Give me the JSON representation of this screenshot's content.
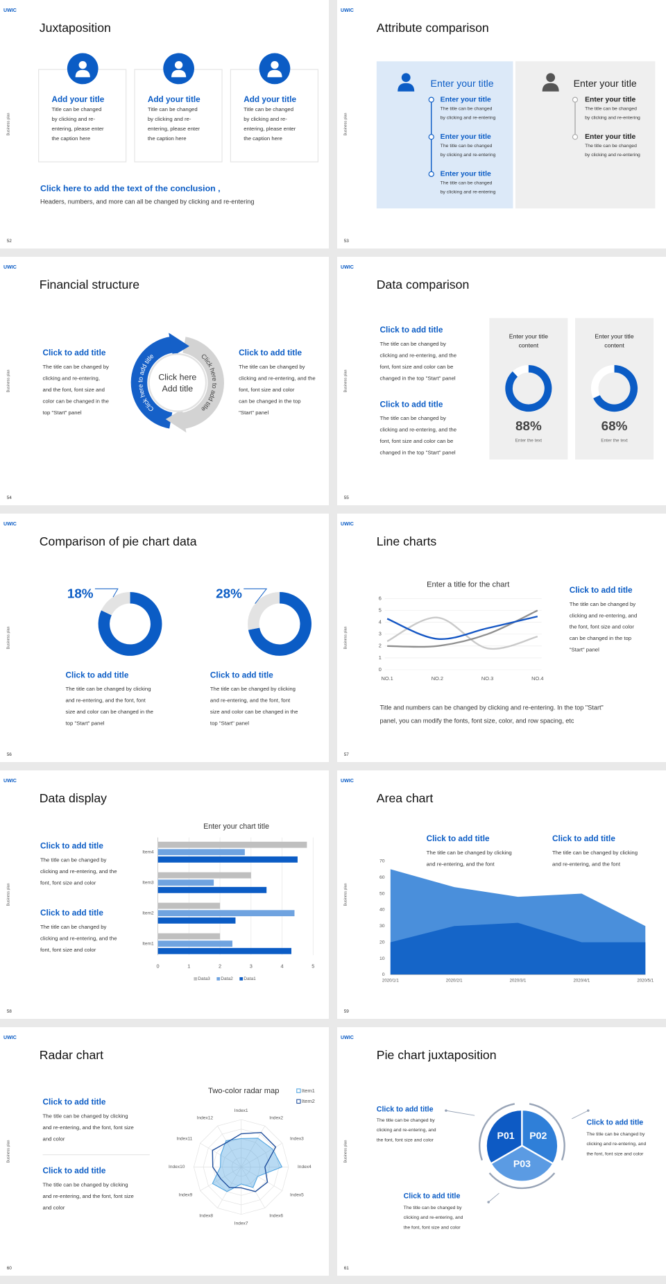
{
  "slides": [
    {
      "number": "52",
      "logo": "UWIC",
      "side_label": "Business plan",
      "title": "Juxtaposition",
      "cards": [
        {
          "title": "Add your title",
          "body": [
            "Title can be changed",
            "by clicking and re-",
            "entering, please enter",
            "the caption here"
          ]
        },
        {
          "title": "Add your title",
          "body": [
            "Title can be changed",
            "by clicking and re-",
            "entering, please enter",
            "the caption here"
          ]
        },
        {
          "title": "Add your title",
          "body": [
            "Title can be changed",
            "by clicking and re-",
            "entering, please enter",
            "the caption here"
          ]
        }
      ],
      "conclusion": {
        "title": "Click here to add the text of the conclusion ,",
        "text": "Headers, numbers, and more can all be changed by clicking and re-entering"
      }
    },
    {
      "number": "53",
      "logo": "UWIC",
      "side_label": "Business plan",
      "title": "Attribute comparison",
      "panels": [
        {
          "title": "Enter your title",
          "items": [
            {
              "title": "Enter your title",
              "body": [
                "The title can be changed",
                "by clicking and re-entering"
              ]
            },
            {
              "title": "Enter your title",
              "body": [
                "The title can be changed",
                "by clicking and re-entering"
              ]
            },
            {
              "title": "Enter your title",
              "body": [
                "The title can be changed",
                "by clicking and re-entering"
              ]
            }
          ]
        },
        {
          "title": "Enter your title",
          "items": [
            {
              "title": "Enter your title",
              "body": [
                "The title can be changed",
                "by clicking and re-entering"
              ]
            },
            {
              "title": "Enter your title",
              "body": [
                "The title can be changed",
                "by clicking and re-entering"
              ]
            }
          ]
        }
      ]
    },
    {
      "number": "54",
      "logo": "UWIC",
      "side_label": "Business plan",
      "title": "Financial structure",
      "blocks": [
        {
          "title": "Click to add title",
          "body": [
            "The title can be changed by",
            "clicking and re-entering,",
            "and the font, font size and",
            "color can be changed in the",
            "top \"Start\" panel"
          ]
        },
        {
          "title": "Click to add title",
          "body": [
            "The title can be changed by",
            "clicking and re-entering, and the",
            "font, font size and color",
            "can be changed in the top",
            "\"Start\" panel"
          ]
        }
      ],
      "diagram": {
        "center": [
          "Click here",
          "Add title"
        ],
        "arc_left": "Click here to add title",
        "arc_right": "Click here to add title"
      }
    },
    {
      "number": "55",
      "logo": "UWIC",
      "side_label": "Business plan",
      "title": "Data comparison",
      "blocks": [
        {
          "title": "Click to add title",
          "body": [
            "The title can be changed by",
            "clicking and re-entering, and the",
            "font, font size and color can be",
            "changed in the top \"Start\" panel"
          ]
        },
        {
          "title": "Click to add title",
          "body": [
            "The title can be changed by",
            "clicking and re-entering, and the",
            "font, font size and color can be",
            "changed in the top \"Start\" panel"
          ]
        }
      ],
      "cards": [
        {
          "title": [
            "Enter your title",
            "content"
          ],
          "value": 88,
          "value_label": "88%",
          "caption": "Enter the text"
        },
        {
          "title": [
            "Enter your title",
            "content"
          ],
          "value": 68,
          "value_label": "68%",
          "caption": "Enter the text"
        }
      ]
    },
    {
      "number": "56",
      "logo": "UWIC",
      "side_label": "Business plan",
      "title": "Comparison of pie chart data",
      "items": [
        {
          "value": 18,
          "value_label": "18%",
          "title": "Click to add title",
          "body": [
            "The title can be changed by clicking",
            "and re-entering, and the font, font",
            "size and color can be changed in the",
            "top \"Start\" panel"
          ]
        },
        {
          "value": 28,
          "value_label": "28%",
          "title": "Click to add title",
          "body": [
            "The title can be changed by clicking",
            "and re-entering, and the font, font",
            "size and color can be changed in the",
            "top \"Start\" panel"
          ]
        }
      ]
    },
    {
      "number": "57",
      "logo": "UWIC",
      "side_label": "Business plan",
      "title": "Line charts",
      "chart": {
        "type": "line",
        "title": "Enter a title for the chart",
        "categories": [
          "NO.1",
          "NO.2",
          "NO.3",
          "NO.4"
        ],
        "series": [
          {
            "color": "#c9c9c9",
            "values": [
              2.4,
              4.4,
              1.8,
              2.8
            ]
          },
          {
            "color": "#8f8f8f",
            "values": [
              2,
              2,
              3,
              5
            ]
          },
          {
            "color": "#1456c4",
            "values": [
              4.3,
              2.6,
              3.5,
              4.5
            ]
          }
        ],
        "ylim": [
          0,
          6
        ],
        "yticks": [
          0,
          1,
          2,
          3,
          4,
          5,
          6
        ],
        "grid": true,
        "smooth": true
      },
      "block": {
        "title": "Click to add title",
        "body": [
          "The title can be changed by",
          "clicking and re-entering, and",
          "the font, font size and color",
          "can be changed in the top",
          "\"Start\" panel"
        ]
      },
      "note": [
        "Title and numbers can be changed by clicking and re-entering. In the top \"Start\"",
        "panel, you can modify the fonts, font size, color, and row spacing, etc"
      ]
    },
    {
      "number": "58",
      "logo": "UWIC",
      "side_label": "Business plan",
      "title": "Data display",
      "chart": {
        "type": "bar",
        "title": "Enter your chart title",
        "categories": [
          "Item1",
          "Item2",
          "Item3",
          "Item4"
        ],
        "series": [
          {
            "name": "Data1",
            "color": "#0b5cc5",
            "values": [
              4.3,
              2.5,
              3.5,
              4.5
            ]
          },
          {
            "name": "Data2",
            "color": "#6fa3e0",
            "values": [
              2.4,
              4.4,
              1.8,
              2.8
            ]
          },
          {
            "name": "Data3",
            "color": "#bfbfbf",
            "values": [
              2,
              2,
              3,
              4.8
            ]
          }
        ],
        "xlim": [
          0,
          5
        ],
        "xticks": [
          0,
          1,
          2,
          3,
          4,
          5
        ],
        "grid": true,
        "legend": "bottom"
      },
      "blocks": [
        {
          "title": "Click to add title",
          "body": [
            "The title can be changed by",
            "clicking and re-entering, and the",
            "font, font size and color"
          ]
        },
        {
          "title": "Click to add title",
          "body": [
            "The title can be changed by",
            "clicking and re-entering, and the",
            "font, font size and color"
          ]
        }
      ]
    },
    {
      "number": "59",
      "logo": "UWIC",
      "side_label": "Business plan",
      "title": "Area chart",
      "chart": {
        "type": "area",
        "categories": [
          "2020/1/1",
          "2020/2/1",
          "2020/3/1",
          "2020/4/1",
          "2020/5/1"
        ],
        "series": [
          {
            "color": "#4a8fdb",
            "values": [
              65,
              54,
              48,
              50,
              30
            ]
          },
          {
            "color": "#1565c8",
            "values": [
              20,
              30,
              32,
              20,
              20
            ]
          }
        ],
        "ylim": [
          0,
          70
        ],
        "yticks": [
          0,
          10,
          20,
          30,
          40,
          50,
          60,
          70
        ],
        "grid": false
      },
      "blocks": [
        {
          "title": "Click to add title",
          "body": [
            "The title can be changed by clicking",
            "and re-entering, and the font"
          ]
        },
        {
          "title": "Click to add title",
          "body": [
            "The title can be changed by clicking",
            "and re-entering, and the font"
          ]
        }
      ]
    },
    {
      "number": "60",
      "logo": "UWIC",
      "side_label": "Business plan",
      "title": "Radar chart",
      "chart": {
        "type": "radar",
        "title": "Two-color radar map",
        "categories": [
          "Index1",
          "Index2",
          "Index3",
          "Index4",
          "Index5",
          "Index6",
          "Index7",
          "Index8",
          "Index9",
          "Index10",
          "Index11",
          "Index12"
        ],
        "series": [
          {
            "name": "Item1",
            "color": "#4ea3e0",
            "values": [
              3,
              3.5,
              3.8,
              4.3,
              2,
              2.5,
              1.8,
              3,
              3.5,
              2.2,
              2.5,
              3.2
            ]
          },
          {
            "name": "Item2",
            "color": "#1f4e9c",
            "values": [
              3.5,
              4.2,
              4.2,
              2.5,
              3.2,
              3,
              2.2,
              2.5,
              2.5,
              3,
              3.5,
              3
            ]
          }
        ],
        "rlim": [
          0,
          5
        ],
        "legend": "top-right"
      },
      "blocks": [
        {
          "title": "Click to add title",
          "body": [
            "The title can be changed by clicking",
            "and re-entering, and the font, font size",
            "and color"
          ]
        },
        {
          "title": "Click to add title",
          "body": [
            "The title can be changed by clicking",
            "and re-entering, and the font, font size",
            "and color"
          ]
        }
      ]
    },
    {
      "number": "61",
      "logo": "UWIC",
      "side_label": "Business plan",
      "title": "Pie chart juxtaposition",
      "segments": [
        "P01",
        "P02",
        "P03"
      ],
      "blocks": [
        {
          "title": "Click to add title",
          "body": [
            "The title can be changed by",
            "clicking and re-entering, and",
            "the font, font size and color"
          ]
        },
        {
          "title": "Click to add title",
          "body": [
            "The title can be changed by",
            "clicking and re-entering, and",
            "the font, font size and color"
          ]
        },
        {
          "title": "Click to add title",
          "body": [
            "The title can be changed by",
            "clicking and re-entering, and",
            "the font, font size and color"
          ]
        }
      ]
    }
  ]
}
